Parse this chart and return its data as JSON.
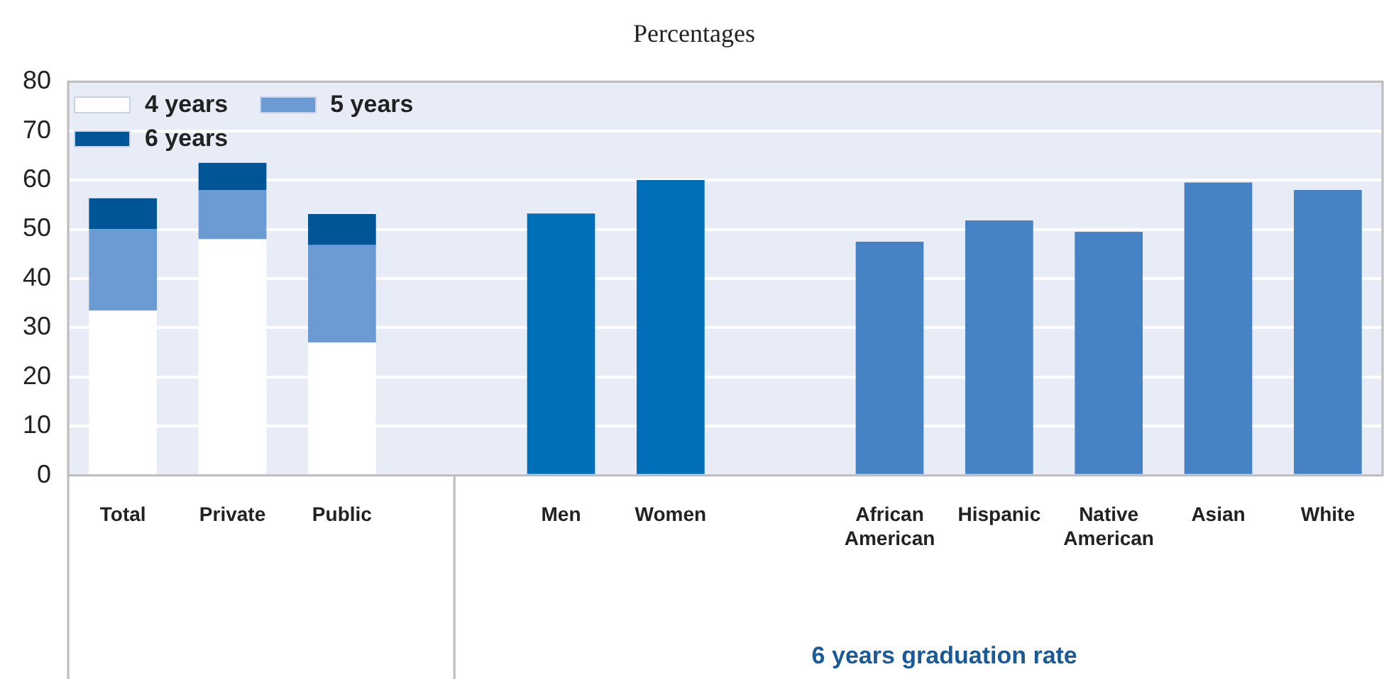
{
  "chart_data": {
    "type": "bar",
    "title": "Percentages",
    "categories": [
      "Total",
      "Private",
      "Public",
      null,
      "Men",
      "Women",
      null,
      "African American",
      "Hispanic",
      "Native American",
      "Asian",
      "White"
    ],
    "series": [
      {
        "name": "4 years",
        "color": "#ffffff",
        "values": [
          33.5,
          48,
          27,
          null,
          null,
          null,
          null,
          null,
          null,
          null,
          null,
          null
        ]
      },
      {
        "name": "5 years",
        "color": "#6b9bd2",
        "values": [
          16.5,
          10,
          19.8,
          null,
          null,
          null,
          null,
          null,
          null,
          null,
          null,
          null
        ]
      },
      {
        "name": "6 years",
        "color": "#005596",
        "values": [
          6.3,
          5.5,
          6.3,
          null,
          null,
          null,
          null,
          null,
          null,
          null,
          null,
          null
        ]
      },
      {
        "color": "#006fba",
        "values": [
          null,
          null,
          null,
          null,
          53.2,
          60,
          null,
          null,
          null,
          null,
          null,
          null
        ]
      },
      {
        "color": "#4683c5",
        "values": [
          null,
          null,
          null,
          null,
          null,
          null,
          null,
          47.5,
          51.8,
          49.5,
          59.5,
          58
        ]
      }
    ],
    "stacked": true,
    "ylim": [
      0,
      80
    ],
    "yticks": [
      0,
      10,
      20,
      30,
      40,
      50,
      60,
      70,
      80
    ],
    "grid": "y",
    "legend": "top left",
    "annotations": [
      "6 years graduation rate"
    ]
  }
}
